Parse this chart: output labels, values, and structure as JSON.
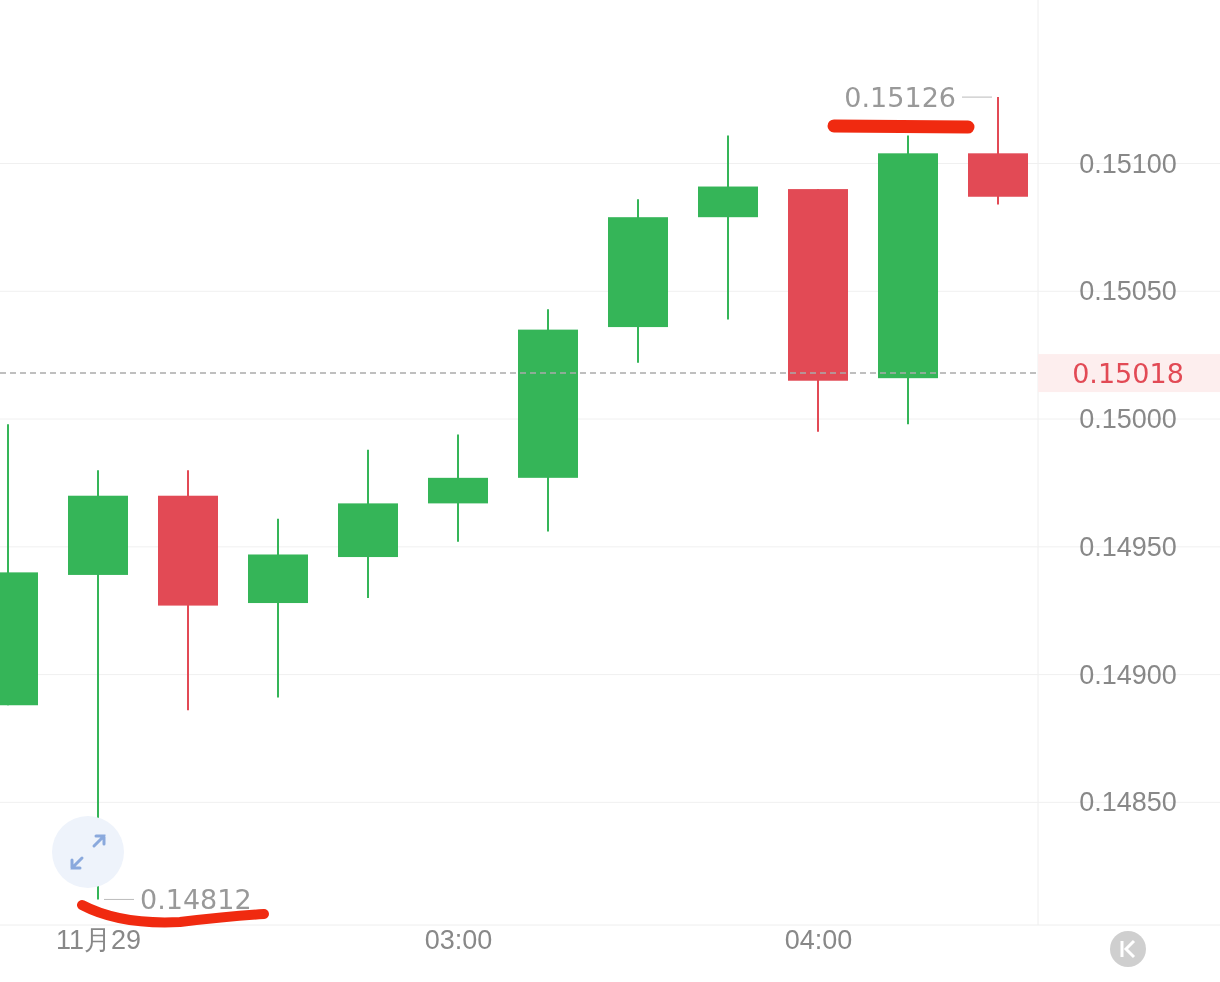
{
  "chart_data": {
    "type": "candlestick",
    "categories": [
      null,
      "11月29",
      null,
      null,
      null,
      "03:00",
      null,
      null,
      null,
      "04:00",
      null,
      null
    ],
    "ohlc": [
      [
        0.14888,
        0.14998,
        0.14888,
        0.1494
      ],
      [
        0.14939,
        0.1498,
        0.14812,
        0.1497
      ],
      [
        0.1497,
        0.1498,
        0.14886,
        0.14927
      ],
      [
        0.14928,
        0.14961,
        0.14891,
        0.14947
      ],
      [
        0.14946,
        0.14988,
        0.1493,
        0.14967
      ],
      [
        0.14967,
        0.14994,
        0.14952,
        0.14977
      ],
      [
        0.14977,
        0.15043,
        0.14956,
        0.15035
      ],
      [
        0.15036,
        0.15086,
        0.15022,
        0.15079
      ],
      [
        0.15079,
        0.15111,
        0.15039,
        0.15091
      ],
      [
        0.1509,
        0.1509,
        0.14995,
        0.15015
      ],
      [
        0.15016,
        0.15111,
        0.14998,
        0.15104
      ],
      [
        0.15104,
        0.15126,
        0.15084,
        0.15087
      ]
    ],
    "colors": [
      "#35b558",
      "#35b558",
      "#e24a55",
      "#35b558",
      "#35b558",
      "#35b558",
      "#35b558",
      "#35b558",
      "#35b558",
      "#e24a55",
      "#35b558",
      "#e24a55"
    ],
    "ylim": [
      0.14802,
      0.15164
    ],
    "yticks": [
      {
        "value": 0.1485,
        "label": "0.14850"
      },
      {
        "value": 0.149,
        "label": "0.14900"
      },
      {
        "value": 0.1495,
        "label": "0.14950"
      },
      {
        "value": 0.15,
        "label": "0.15000"
      },
      {
        "value": 0.1505,
        "label": "0.15050"
      },
      {
        "value": 0.151,
        "label": "0.15100"
      }
    ],
    "grid": "y",
    "ref_lines": [
      {
        "axis": "y",
        "value": 0.15018,
        "label": "0.15018",
        "color": "#aaaaaa",
        "line_style": "dashed"
      }
    ],
    "annotations": [
      "0.15126",
      {
        "text": "0.14812",
        "x": "11月29",
        "y": 0.14812
      }
    ]
  }
}
